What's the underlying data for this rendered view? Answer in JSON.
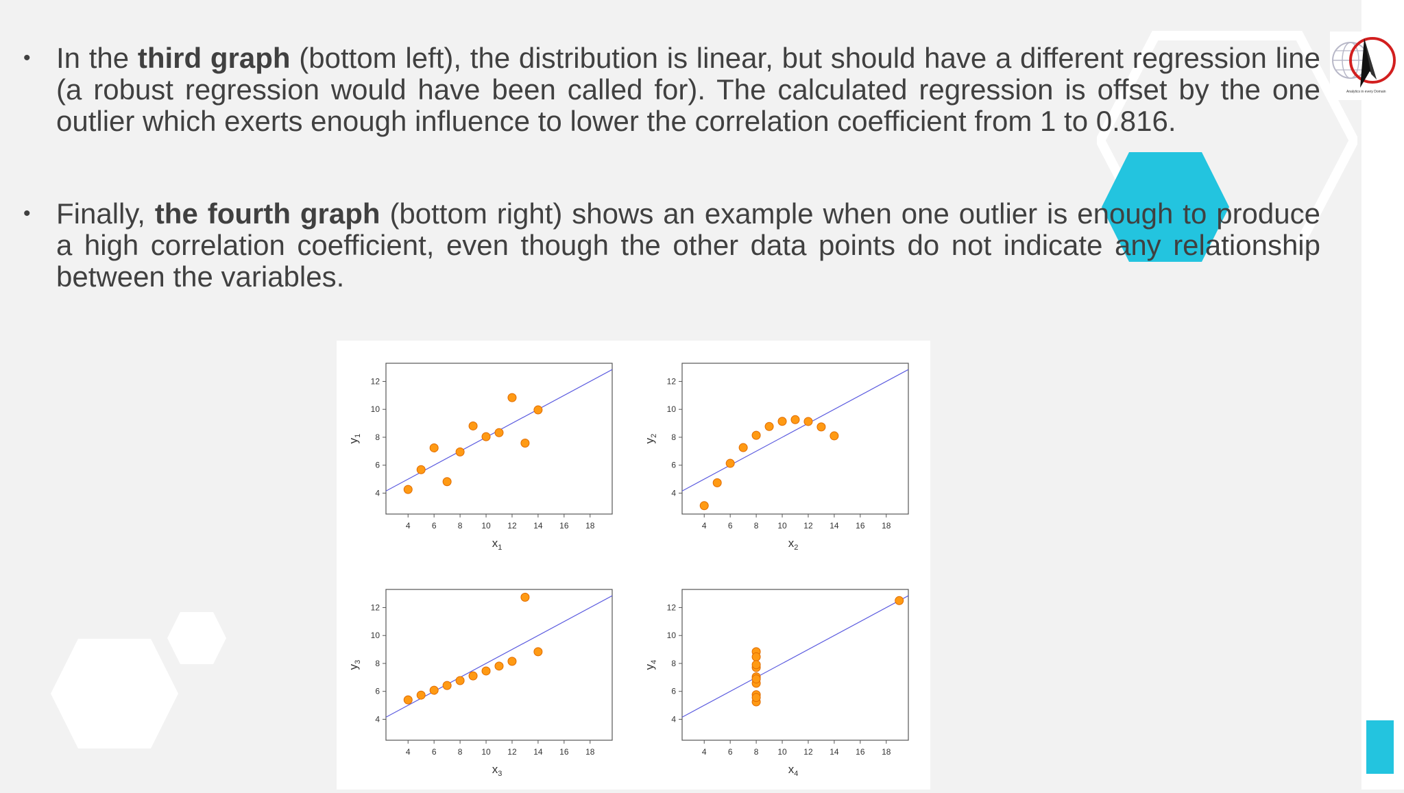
{
  "slide": {
    "bullets": [
      {
        "marker": "•",
        "prefix": "In the ",
        "bold": "third graph",
        "rest": " (bottom left), the distribution is linear, but should have a different regression line (a robust regression would have been called for). The calculated regression is offset by the one outlier which exerts enough influence to lower the correlation coefficient from 1 to 0.816."
      },
      {
        "marker": "•",
        "prefix": "Finally, ",
        "bold": "the fourth graph",
        "rest": " (bottom right) shows an example when one outlier is enough to produce a high correlation coefficient, even though the other data points do not indicate any relationship between the variables."
      }
    ],
    "logo_text": "Analytics in every Domain"
  },
  "colors": {
    "background": "#f2f2f2",
    "accent": "#23c4df",
    "point_fill": "#ff9a14",
    "point_stroke": "#e06b00",
    "regression_line": "#5a5adf",
    "text": "#404040"
  },
  "chart_data": [
    {
      "type": "scatter",
      "xlabel": "x",
      "xlabel_sub": "1",
      "ylabel": "y",
      "ylabel_sub": "1",
      "xticks": [
        4,
        6,
        8,
        10,
        12,
        14,
        16,
        18
      ],
      "yticks": [
        4,
        6,
        8,
        10,
        12
      ],
      "xlim": [
        2.3,
        19.7
      ],
      "ylim": [
        2.5,
        13.3
      ],
      "regression": {
        "intercept": 3.0,
        "slope": 0.5
      },
      "points": [
        [
          10,
          8.04
        ],
        [
          8,
          6.95
        ],
        [
          13,
          7.58
        ],
        [
          9,
          8.81
        ],
        [
          11,
          8.33
        ],
        [
          14,
          9.96
        ],
        [
          6,
          7.24
        ],
        [
          4,
          4.26
        ],
        [
          12,
          10.84
        ],
        [
          7,
          4.82
        ],
        [
          5,
          5.68
        ]
      ]
    },
    {
      "type": "scatter",
      "xlabel": "x",
      "xlabel_sub": "2",
      "ylabel": "y",
      "ylabel_sub": "2",
      "xticks": [
        4,
        6,
        8,
        10,
        12,
        14,
        16,
        18
      ],
      "yticks": [
        4,
        6,
        8,
        10,
        12
      ],
      "xlim": [
        2.3,
        19.7
      ],
      "ylim": [
        2.5,
        13.3
      ],
      "regression": {
        "intercept": 3.0,
        "slope": 0.5
      },
      "points": [
        [
          10,
          9.14
        ],
        [
          8,
          8.14
        ],
        [
          13,
          8.74
        ],
        [
          9,
          8.77
        ],
        [
          11,
          9.26
        ],
        [
          14,
          8.1
        ],
        [
          6,
          6.13
        ],
        [
          4,
          3.1
        ],
        [
          12,
          9.13
        ],
        [
          7,
          7.26
        ],
        [
          5,
          4.74
        ]
      ]
    },
    {
      "type": "scatter",
      "xlabel": "x",
      "xlabel_sub": "3",
      "ylabel": "y",
      "ylabel_sub": "3",
      "xticks": [
        4,
        6,
        8,
        10,
        12,
        14,
        16,
        18
      ],
      "yticks": [
        4,
        6,
        8,
        10,
        12
      ],
      "xlim": [
        2.3,
        19.7
      ],
      "ylim": [
        2.5,
        13.3
      ],
      "regression": {
        "intercept": 3.0,
        "slope": 0.5
      },
      "points": [
        [
          10,
          7.46
        ],
        [
          8,
          6.77
        ],
        [
          13,
          12.74
        ],
        [
          9,
          7.11
        ],
        [
          11,
          7.81
        ],
        [
          14,
          8.84
        ],
        [
          6,
          6.08
        ],
        [
          4,
          5.39
        ],
        [
          12,
          8.15
        ],
        [
          7,
          6.42
        ],
        [
          5,
          5.73
        ]
      ]
    },
    {
      "type": "scatter",
      "xlabel": "x",
      "xlabel_sub": "4",
      "ylabel": "y",
      "ylabel_sub": "4",
      "xticks": [
        4,
        6,
        8,
        10,
        12,
        14,
        16,
        18
      ],
      "yticks": [
        4,
        6,
        8,
        10,
        12
      ],
      "xlim": [
        2.3,
        19.7
      ],
      "ylim": [
        2.5,
        13.3
      ],
      "regression": {
        "intercept": 3.0,
        "slope": 0.5
      },
      "points": [
        [
          8,
          6.58
        ],
        [
          8,
          5.76
        ],
        [
          8,
          7.71
        ],
        [
          8,
          8.84
        ],
        [
          8,
          8.47
        ],
        [
          8,
          7.04
        ],
        [
          8,
          5.25
        ],
        [
          19,
          12.5
        ],
        [
          8,
          5.56
        ],
        [
          8,
          7.91
        ],
        [
          8,
          6.89
        ]
      ]
    }
  ]
}
